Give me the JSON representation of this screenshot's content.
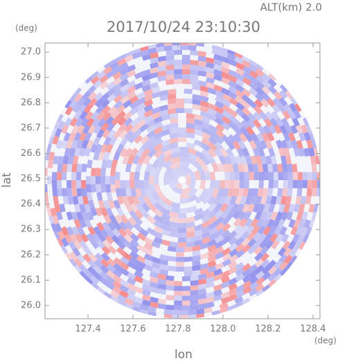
{
  "chart_data": {
    "type": "radar-ppi",
    "altitude_label": "ALT(km) 2.0",
    "title": "2017/10/24 23:10:30",
    "x_unit": "(deg)",
    "y_unit": "(deg)",
    "xlabel": "lon",
    "ylabel": "lat",
    "xlim": [
      127.209,
      128.431
    ],
    "ylim": [
      25.948,
      27.036
    ],
    "xticks": [
      127.4,
      127.6,
      127.8,
      {
        "value": 128.0,
        "label": "128.0"
      },
      128.2,
      128.4
    ],
    "yticks": [
      {
        "value": 26.0,
        "label": "26.0"
      },
      26.1,
      26.2,
      26.3,
      26.4,
      26.5,
      26.6,
      26.7,
      26.8,
      26.9,
      {
        "value": 27.0,
        "label": "27.0"
      }
    ]
  }
}
